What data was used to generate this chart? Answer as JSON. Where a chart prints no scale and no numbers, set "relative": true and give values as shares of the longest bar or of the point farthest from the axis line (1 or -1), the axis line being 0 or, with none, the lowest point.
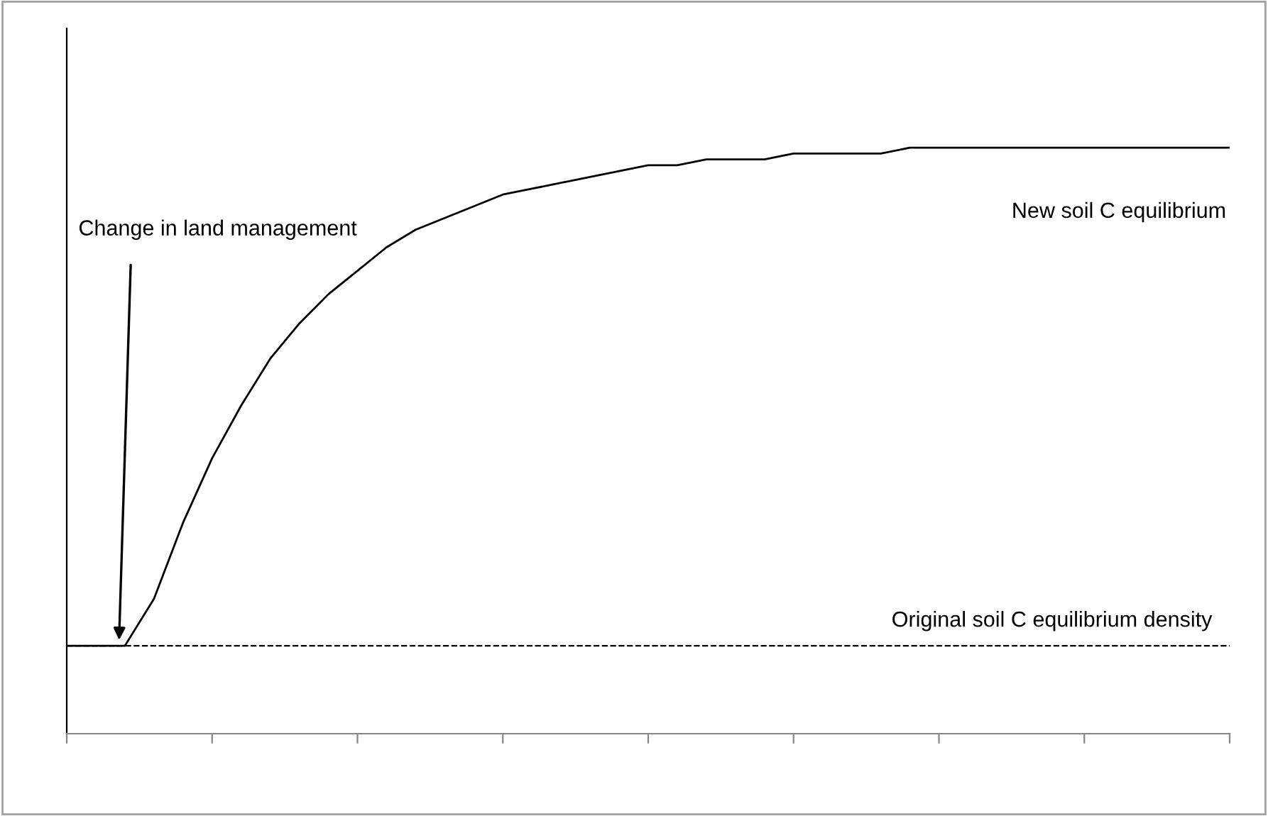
{
  "chart_data": {
    "type": "line",
    "relative": true,
    "tick_labels": false,
    "grid": false,
    "marker": "none",
    "line_style": "solid",
    "categories": [
      null,
      null,
      null,
      null,
      null,
      null,
      null,
      null,
      null,
      null,
      null,
      null,
      null,
      null,
      null,
      null,
      null,
      null,
      null,
      null,
      null,
      null,
      null,
      null,
      null,
      null,
      null,
      null,
      null,
      null,
      null,
      null,
      null,
      null,
      null,
      null,
      null,
      null,
      null,
      null,
      null
    ],
    "series": [
      {
        "color": "#000000",
        "values": [
          0.15,
          0.15,
          0.15,
          0.23,
          0.36,
          0.47,
          0.56,
          0.64,
          0.7,
          0.75,
          0.79,
          0.83,
          0.86,
          0.88,
          0.9,
          0.92,
          0.93,
          0.94,
          0.95,
          0.96,
          0.97,
          0.97,
          0.98,
          0.98,
          0.98,
          0.99,
          0.99,
          0.99,
          0.99,
          1.0,
          1.0,
          1.0,
          1.0,
          1.0,
          1.0,
          1.0,
          1.0,
          1.0,
          1.0,
          1.0,
          1.0
        ]
      }
    ],
    "ref_lines": [
      {
        "axis": "y",
        "value": 0.15,
        "label": "Original soil C equilibrium density",
        "color": "#000000",
        "line_style": "dashed"
      }
    ],
    "annotations": [
      "Change in land management",
      "New soil C equilibrium"
    ]
  }
}
